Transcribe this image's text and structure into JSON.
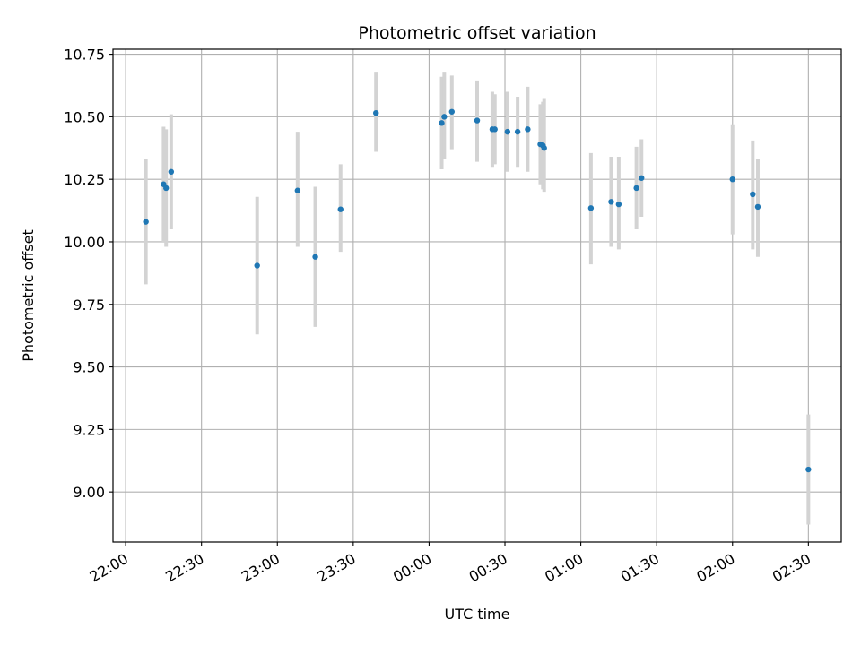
{
  "chart_data": {
    "type": "scatter",
    "title": "Photometric offset variation",
    "xlabel": "UTC time",
    "ylabel": "Photometric offset",
    "x_axis_type": "time",
    "xlim": [
      "21:55",
      "02:43"
    ],
    "ylim": [
      8.8,
      10.77
    ],
    "x_ticks": [
      "22:00",
      "22:30",
      "23:00",
      "23:30",
      "00:00",
      "00:30",
      "01:00",
      "01:30",
      "02:00",
      "02:30"
    ],
    "y_ticks": [
      "9.00",
      "9.25",
      "9.50",
      "9.75",
      "10.00",
      "10.25",
      "10.50",
      "10.75"
    ],
    "grid": true,
    "point_color": "#1f77b4",
    "errorbar_color": "#d3d3d3",
    "points": [
      {
        "t": "22:08",
        "y": 10.08,
        "low": 9.83,
        "high": 10.33
      },
      {
        "t": "22:15",
        "y": 10.23,
        "low": 10.0,
        "high": 10.46
      },
      {
        "t": "22:16",
        "y": 10.215,
        "low": 9.98,
        "high": 10.45
      },
      {
        "t": "22:18",
        "y": 10.28,
        "low": 10.05,
        "high": 10.51
      },
      {
        "t": "22:52",
        "y": 9.905,
        "low": 9.63,
        "high": 10.18
      },
      {
        "t": "23:08",
        "y": 10.205,
        "low": 9.98,
        "high": 10.44
      },
      {
        "t": "23:15",
        "y": 9.94,
        "low": 9.66,
        "high": 10.22
      },
      {
        "t": "23:25",
        "y": 10.13,
        "low": 9.96,
        "high": 10.31
      },
      {
        "t": "23:39",
        "y": 10.515,
        "low": 10.36,
        "high": 10.68
      },
      {
        "t": "00:05",
        "y": 10.475,
        "low": 10.29,
        "high": 10.66
      },
      {
        "t": "00:06",
        "y": 10.5,
        "low": 10.33,
        "high": 10.68
      },
      {
        "t": "00:09",
        "y": 10.52,
        "low": 10.37,
        "high": 10.665
      },
      {
        "t": "00:19",
        "y": 10.485,
        "low": 10.32,
        "high": 10.645
      },
      {
        "t": "00:25",
        "y": 10.45,
        "low": 10.3,
        "high": 10.6
      },
      {
        "t": "00:26",
        "y": 10.45,
        "low": 10.31,
        "high": 10.59
      },
      {
        "t": "00:31",
        "y": 10.44,
        "low": 10.28,
        "high": 10.6
      },
      {
        "t": "00:35",
        "y": 10.44,
        "low": 10.3,
        "high": 10.58
      },
      {
        "t": "00:39",
        "y": 10.45,
        "low": 10.28,
        "high": 10.62
      },
      {
        "t": "00:44",
        "y": 10.39,
        "low": 10.23,
        "high": 10.55
      },
      {
        "t": "00:45",
        "y": 10.385,
        "low": 10.21,
        "high": 10.56
      },
      {
        "t": "00:45.5",
        "y": 10.375,
        "low": 10.2,
        "high": 10.575
      },
      {
        "t": "01:04",
        "y": 10.135,
        "low": 9.91,
        "high": 10.355
      },
      {
        "t": "01:12",
        "y": 10.16,
        "low": 9.98,
        "high": 10.34
      },
      {
        "t": "01:15",
        "y": 10.15,
        "low": 9.97,
        "high": 10.34
      },
      {
        "t": "01:22",
        "y": 10.215,
        "low": 10.05,
        "high": 10.38
      },
      {
        "t": "01:24",
        "y": 10.255,
        "low": 10.1,
        "high": 10.41
      },
      {
        "t": "02:00",
        "y": 10.25,
        "low": 10.03,
        "high": 10.47
      },
      {
        "t": "02:08",
        "y": 10.19,
        "low": 9.97,
        "high": 10.405
      },
      {
        "t": "02:10",
        "y": 10.14,
        "low": 9.94,
        "high": 10.33
      },
      {
        "t": "02:30",
        "y": 9.09,
        "low": 8.87,
        "high": 9.31
      }
    ]
  }
}
